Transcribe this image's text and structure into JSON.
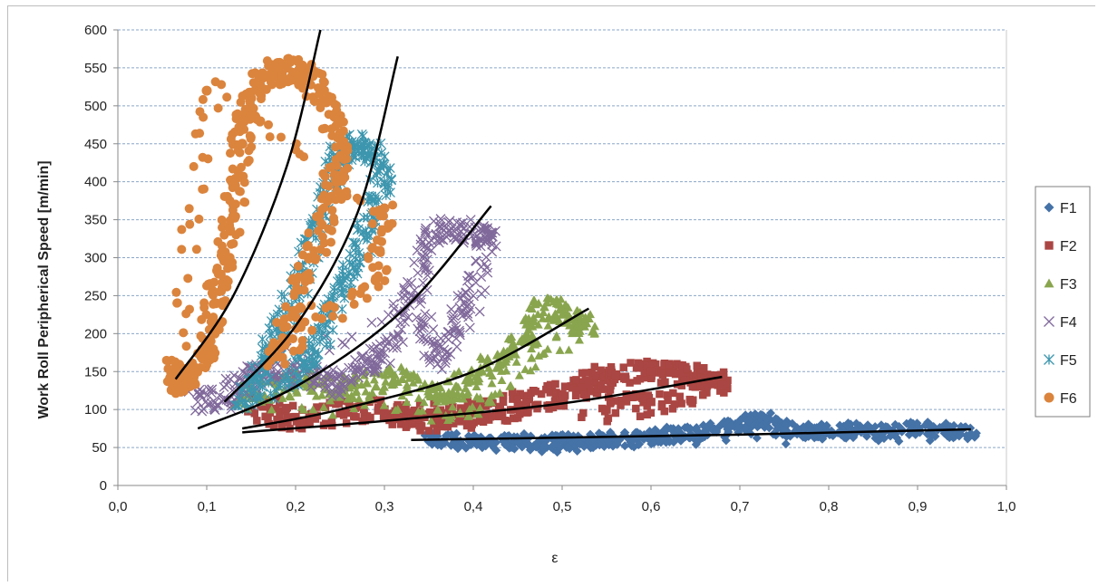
{
  "chart_data": {
    "type": "scatter",
    "xlabel": "ε",
    "ylabel": "Work Roll Peripherical Speed [m/min]",
    "xlim": [
      0,
      1.0
    ],
    "ylim": [
      0,
      600
    ],
    "x_ticks": [
      "0,0",
      "0,1",
      "0,2",
      "0,3",
      "0,4",
      "0,5",
      "0,6",
      "0,7",
      "0,8",
      "0,9",
      "1,0"
    ],
    "y_ticks": [
      "0",
      "50",
      "100",
      "150",
      "200",
      "250",
      "300",
      "350",
      "400",
      "450",
      "500",
      "550",
      "600"
    ],
    "grid": "horizontal dashed",
    "legend_position": "right",
    "series": [
      {
        "name": "F1",
        "marker": "diamond",
        "color": "#4572A7",
        "points": [
          [
            0.35,
            58
          ],
          [
            0.38,
            60
          ],
          [
            0.42,
            55
          ],
          [
            0.45,
            58
          ],
          [
            0.48,
            52
          ],
          [
            0.5,
            60
          ],
          [
            0.52,
            55
          ],
          [
            0.55,
            62
          ],
          [
            0.58,
            60
          ],
          [
            0.6,
            65
          ],
          [
            0.63,
            68
          ],
          [
            0.66,
            70
          ],
          [
            0.69,
            78
          ],
          [
            0.71,
            85
          ],
          [
            0.73,
            88
          ],
          [
            0.75,
            75
          ],
          [
            0.78,
            72
          ],
          [
            0.8,
            70
          ],
          [
            0.83,
            73
          ],
          [
            0.86,
            70
          ],
          [
            0.9,
            75
          ],
          [
            0.93,
            72
          ],
          [
            0.96,
            68
          ]
        ],
        "fit": [
          [
            0.33,
            60
          ],
          [
            0.5,
            63
          ],
          [
            0.7,
            67
          ],
          [
            0.96,
            74
          ]
        ]
      },
      {
        "name": "F2",
        "marker": "square",
        "color": "#AA4643",
        "points": [
          [
            0.15,
            100
          ],
          [
            0.2,
            90
          ],
          [
            0.25,
            95
          ],
          [
            0.3,
            100
          ],
          [
            0.33,
            88
          ],
          [
            0.36,
            85
          ],
          [
            0.4,
            95
          ],
          [
            0.43,
            100
          ],
          [
            0.46,
            110
          ],
          [
            0.5,
            120
          ],
          [
            0.53,
            135
          ],
          [
            0.56,
            145
          ],
          [
            0.6,
            150
          ],
          [
            0.63,
            148
          ],
          [
            0.66,
            140
          ],
          [
            0.68,
            132
          ],
          [
            0.6,
            110
          ],
          [
            0.55,
            100
          ]
        ],
        "fit": [
          [
            0.14,
            70
          ],
          [
            0.3,
            85
          ],
          [
            0.5,
            108
          ],
          [
            0.68,
            143
          ]
        ]
      },
      {
        "name": "F3",
        "marker": "triangle",
        "color": "#89A54E",
        "points": [
          [
            0.14,
            115
          ],
          [
            0.18,
            130
          ],
          [
            0.22,
            140
          ],
          [
            0.25,
            125
          ],
          [
            0.28,
            135
          ],
          [
            0.32,
            140
          ],
          [
            0.35,
            120
          ],
          [
            0.38,
            130
          ],
          [
            0.41,
            150
          ],
          [
            0.44,
            170
          ],
          [
            0.46,
            200
          ],
          [
            0.48,
            235
          ],
          [
            0.5,
            225
          ],
          [
            0.52,
            210
          ],
          [
            0.53,
            220
          ],
          [
            0.42,
            110
          ],
          [
            0.36,
            100
          ]
        ],
        "fit": [
          [
            0.14,
            75
          ],
          [
            0.25,
            100
          ],
          [
            0.4,
            150
          ],
          [
            0.53,
            233
          ]
        ]
      },
      {
        "name": "F4",
        "marker": "x",
        "color": "#80699B",
        "points": [
          [
            0.09,
            110
          ],
          [
            0.12,
            115
          ],
          [
            0.15,
            140
          ],
          [
            0.18,
            150
          ],
          [
            0.22,
            145
          ],
          [
            0.25,
            130
          ],
          [
            0.28,
            160
          ],
          [
            0.3,
            175
          ],
          [
            0.33,
            250
          ],
          [
            0.35,
            320
          ],
          [
            0.37,
            340
          ],
          [
            0.4,
            330
          ],
          [
            0.42,
            330
          ],
          [
            0.4,
            250
          ],
          [
            0.38,
            210
          ],
          [
            0.36,
            160
          ],
          [
            0.34,
            240
          ]
        ],
        "fit": [
          [
            0.09,
            75
          ],
          [
            0.2,
            130
          ],
          [
            0.32,
            230
          ],
          [
            0.42,
            368
          ]
        ]
      },
      {
        "name": "F5",
        "marker": "asterisk",
        "color": "#3D96AE",
        "points": [
          [
            0.14,
            110
          ],
          [
            0.16,
            155
          ],
          [
            0.18,
            200
          ],
          [
            0.2,
            250
          ],
          [
            0.22,
            330
          ],
          [
            0.24,
            400
          ],
          [
            0.25,
            440
          ],
          [
            0.27,
            450
          ],
          [
            0.29,
            440
          ],
          [
            0.3,
            400
          ],
          [
            0.28,
            330
          ],
          [
            0.26,
            280
          ],
          [
            0.24,
            230
          ],
          [
            0.22,
            180
          ],
          [
            0.2,
            150
          ]
        ],
        "fit": [
          [
            0.12,
            110
          ],
          [
            0.2,
            210
          ],
          [
            0.27,
            360
          ],
          [
            0.315,
            565
          ]
        ]
      },
      {
        "name": "F6",
        "marker": "circle",
        "color": "#DB843D",
        "points": [
          [
            0.065,
            155
          ],
          [
            0.07,
            130
          ],
          [
            0.08,
            145
          ],
          [
            0.1,
            180
          ],
          [
            0.11,
            240
          ],
          [
            0.12,
            300
          ],
          [
            0.13,
            370
          ],
          [
            0.14,
            450
          ],
          [
            0.15,
            510
          ],
          [
            0.17,
            540
          ],
          [
            0.19,
            550
          ],
          [
            0.21,
            540
          ],
          [
            0.23,
            520
          ],
          [
            0.25,
            460
          ],
          [
            0.24,
            380
          ],
          [
            0.22,
            300
          ],
          [
            0.2,
            230
          ],
          [
            0.18,
            170
          ],
          [
            0.29,
            270
          ],
          [
            0.3,
            365
          ],
          [
            0.1,
            520
          ]
        ],
        "fit": [
          [
            0.065,
            140
          ],
          [
            0.13,
            250
          ],
          [
            0.19,
            420
          ],
          [
            0.228,
            600
          ]
        ]
      }
    ]
  }
}
